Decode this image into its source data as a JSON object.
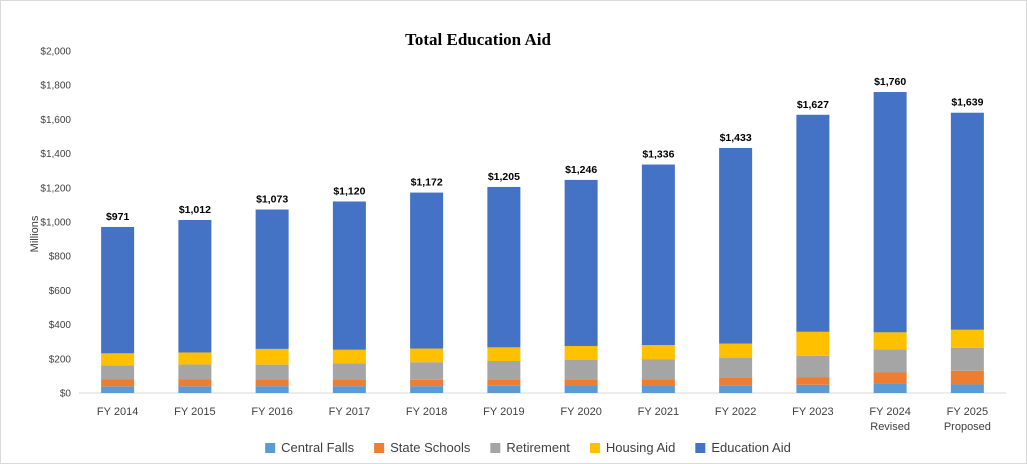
{
  "chart_data": {
    "type": "bar",
    "stacked": true,
    "title": "Total Education Aid",
    "ylabel": "Millions",
    "xlabel": "",
    "ylim": [
      0,
      2000
    ],
    "ytick_step": 200,
    "ytick_labels": [
      "$0",
      "$200",
      "$400",
      "$600",
      "$800",
      "$1,000",
      "$1,200",
      "$1,400",
      "$1,600",
      "$1,800",
      "$2,000"
    ],
    "grid": false,
    "legend_position": "bottom",
    "categories": [
      [
        "FY 2014"
      ],
      [
        "FY 2015"
      ],
      [
        "FY 2016"
      ],
      [
        "FY 2017"
      ],
      [
        "FY 2018"
      ],
      [
        "FY 2019"
      ],
      [
        "FY 2020"
      ],
      [
        "FY 2021"
      ],
      [
        "FY 2022"
      ],
      [
        "FY 2023"
      ],
      [
        "FY 2024",
        "Revised"
      ],
      [
        "FY 2025",
        "Proposed"
      ]
    ],
    "totals": [
      "$971",
      "$1,012",
      "$1,073",
      "$1,120",
      "$1,172",
      "$1,205",
      "$1,246",
      "$1,336",
      "$1,433",
      "$1,627",
      "$1,760",
      "$1,639"
    ],
    "series": [
      {
        "name": "Central Falls",
        "color": "#5B9BD5",
        "values": [
          39,
          39,
          40,
          40,
          40,
          42,
          41,
          41,
          45,
          48,
          55,
          50
        ]
      },
      {
        "name": "State Schools",
        "color": "#ED7D31",
        "values": [
          40,
          40,
          36,
          36,
          38,
          38,
          39,
          40,
          45,
          45,
          65,
          80
        ]
      },
      {
        "name": "Retirement",
        "color": "#A5A5A5",
        "values": [
          83,
          88,
          90,
          97,
          102,
          107,
          113,
          117,
          117,
          125,
          135,
          135
        ]
      },
      {
        "name": "Housing Aid",
        "color": "#FFC000",
        "values": [
          70,
          70,
          92,
          80,
          80,
          80,
          82,
          82,
          82,
          140,
          100,
          105
        ]
      },
      {
        "name": "Education Aid",
        "color": "#4472C4",
        "values": [
          739,
          775,
          815,
          867,
          912,
          938,
          971,
          1056,
          1144,
          1269,
          1405,
          1269
        ]
      }
    ]
  }
}
